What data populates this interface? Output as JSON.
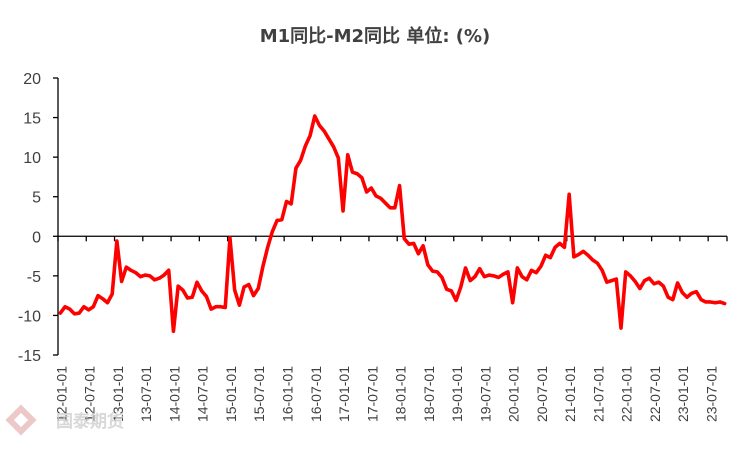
{
  "chart_data": {
    "type": "line",
    "title": "M1同比-M2同比  单位: (%)",
    "xlabel": "",
    "ylabel": "",
    "ylim": [
      -15,
      20
    ],
    "yticks": [
      20,
      15,
      10,
      5,
      0,
      -5,
      -10,
      -15
    ],
    "xticks": [
      "12-01-01",
      "12-07-01",
      "13-01-01",
      "13-07-01",
      "14-01-01",
      "14-07-01",
      "15-01-01",
      "15-07-01",
      "16-01-01",
      "16-07-01",
      "17-01-01",
      "17-07-01",
      "18-01-01",
      "18-07-01",
      "19-01-01",
      "19-07-01",
      "20-01-01",
      "20-07-01",
      "21-01-01",
      "21-07-01",
      "22-01-01",
      "22-07-01",
      "23-01-01",
      "23-07-01"
    ],
    "grid": false,
    "legend": "none",
    "series": [
      {
        "color": "#ff0000",
        "x_start": "2012-01",
        "values": [
          -9.7,
          -8.9,
          -9.2,
          -9.8,
          -9.7,
          -8.9,
          -9.3,
          -8.9,
          -7.5,
          -7.9,
          -8.4,
          -7.3,
          -0.6,
          -5.7,
          -3.9,
          -4.3,
          -4.6,
          -5.1,
          -4.9,
          -5.0,
          -5.5,
          -5.3,
          -4.9,
          -4.3,
          -12.0,
          -6.3,
          -6.8,
          -7.8,
          -7.7,
          -5.8,
          -6.9,
          -7.6,
          -9.2,
          -8.9,
          -8.9,
          -9.0,
          -0.2,
          -6.8,
          -8.7,
          -6.4,
          -6.1,
          -7.5,
          -6.6,
          -3.8,
          -1.4,
          0.6,
          2.0,
          2.1,
          4.4,
          4.1,
          8.6,
          9.6,
          11.4,
          12.7,
          15.2,
          14.0,
          13.3,
          12.3,
          11.3,
          9.9,
          3.2,
          10.3,
          8.1,
          7.9,
          7.4,
          5.6,
          6.1,
          5.1,
          4.8,
          4.2,
          3.6,
          3.6,
          6.4,
          -0.3,
          -1.0,
          -0.9,
          -2.2,
          -1.2,
          -3.6,
          -4.4,
          -4.5,
          -5.2,
          -6.7,
          -6.9,
          -8.1,
          -6.4,
          -4.0,
          -5.6,
          -5.1,
          -4.1,
          -5.1,
          -4.9,
          -5.0,
          -5.2,
          -4.8,
          -4.5,
          -8.4,
          -4.0,
          -5.1,
          -5.5,
          -4.3,
          -4.6,
          -3.8,
          -2.4,
          -2.7,
          -1.4,
          -0.9,
          -1.4,
          5.3,
          -2.6,
          -2.3,
          -1.9,
          -2.4,
          -3.0,
          -3.4,
          -4.3,
          -5.8,
          -5.6,
          -5.4,
          -11.6,
          -4.5,
          -5.0,
          -5.7,
          -6.6,
          -5.6,
          -5.3,
          -6.0,
          -5.8,
          -6.3,
          -7.7,
          -8.0,
          -5.9,
          -7.1,
          -7.7,
          -7.2,
          -7.0,
          -8.0,
          -8.3,
          -8.3,
          -8.4,
          -8.3,
          -8.5
        ]
      }
    ]
  },
  "watermark": {
    "text": "国泰期货",
    "color": "#e9b4b4"
  }
}
